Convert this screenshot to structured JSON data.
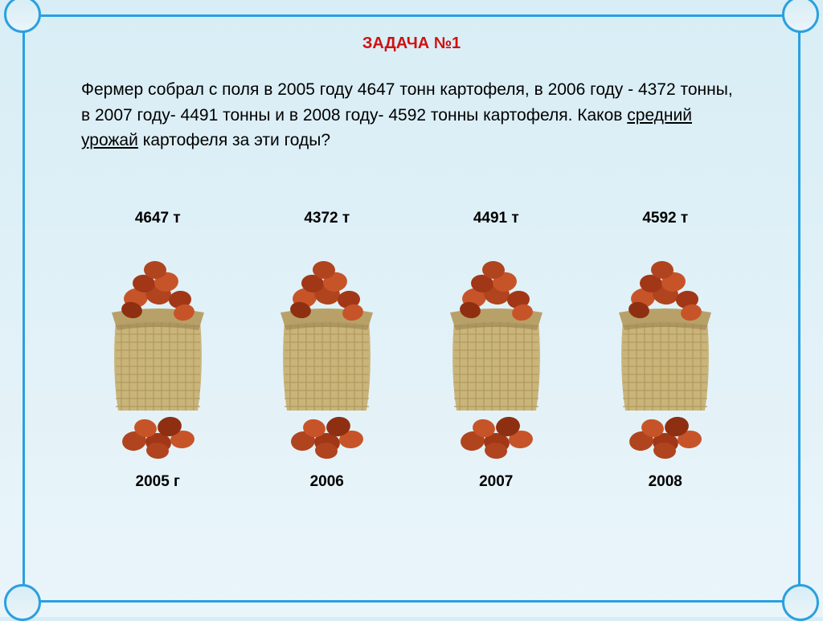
{
  "title": "ЗАДАЧА №1",
  "problem_html": "Фермер собрал с поля в 2005 году 4647 тонн картофеля, в 2006 году - 4372 тонны, в 2007 году- 4491 тонны и в 2008 году- 4592 тонны картофеля. Каков <span class='underline'>средний урожай</span> картофеля за эти годы?",
  "items": [
    {
      "value": "4647 т",
      "year": "2005 г"
    },
    {
      "value": "4372 т",
      "year": "2006"
    },
    {
      "value": "4491 т",
      "year": "2007"
    },
    {
      "value": "4592 т",
      "year": "2008"
    }
  ],
  "style": {
    "frame_border_color": "#2aa0e0",
    "bg_gradient_top": "#d8edf5",
    "bg_gradient_bottom": "#eaf5fa",
    "title_color": "#d01010",
    "title_fontsize": 20,
    "text_color": "#000000",
    "text_fontsize": 21,
    "label_fontsize": 19,
    "potato_colors": [
      "#b0441e",
      "#c75428",
      "#a13716",
      "#8f2f12"
    ],
    "sack_body_color": "#c9b47a",
    "sack_weave_color": "#b29b5f",
    "sack_rim_color": "#b8a168",
    "sack_shadow_color": "#9c8450"
  }
}
